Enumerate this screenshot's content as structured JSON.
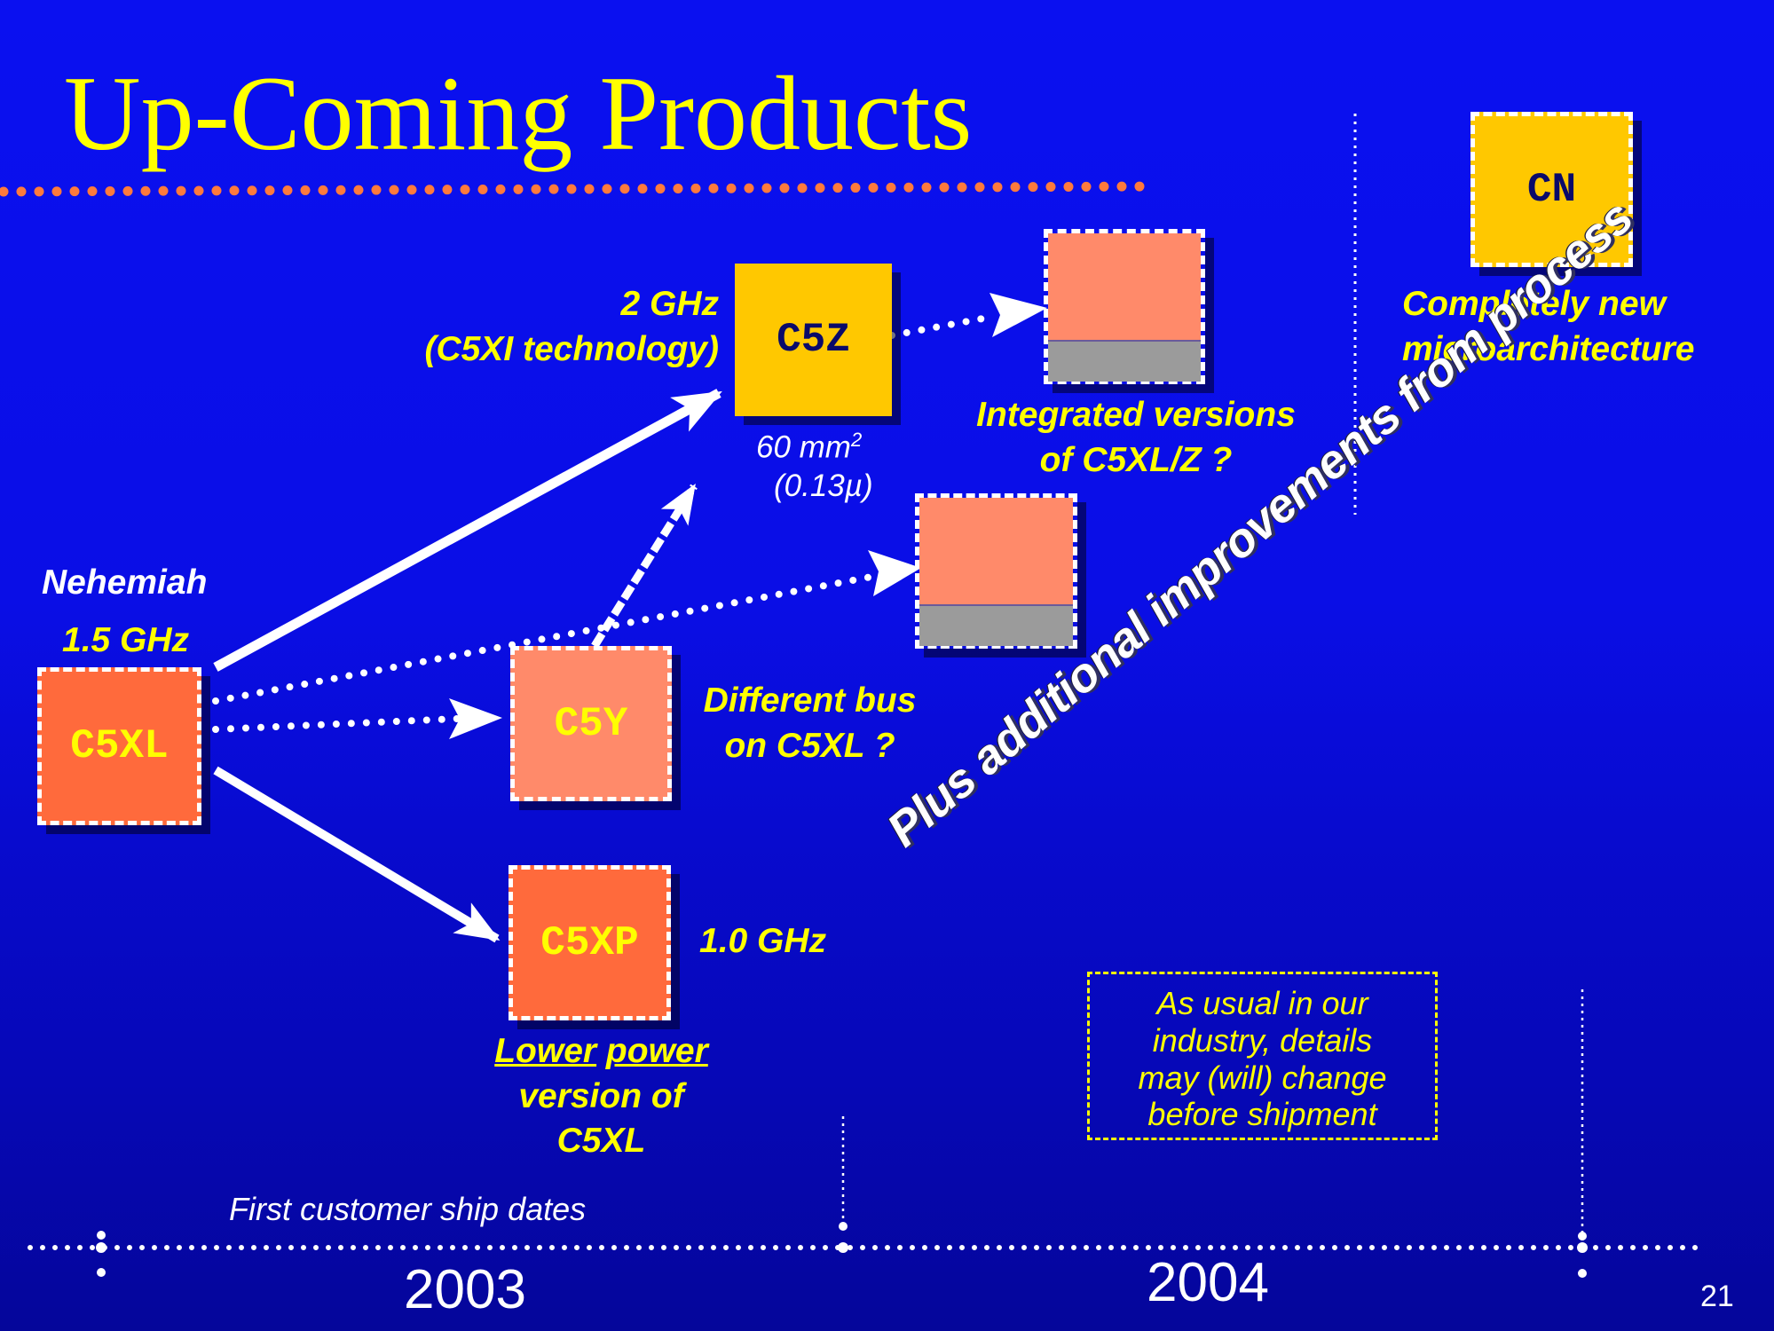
{
  "title": "Up-Coming Products",
  "chips": {
    "c5xl": {
      "label": "C5XL",
      "fill": "#ff6a3c",
      "text_color": "#ffff00"
    },
    "c5z": {
      "label": "C5Z",
      "fill": "#ffc800",
      "text_color": "#0a0a6a"
    },
    "c5y": {
      "label": "C5Y",
      "fill": "#ff8a6a",
      "text_color": "#ffff00"
    },
    "c5xp": {
      "label": "C5XP",
      "fill": "#ff6a3c",
      "text_color": "#ffff00"
    },
    "cn": {
      "label": "CN",
      "fill": "#ffc800",
      "text_color": "#0a0a6a"
    }
  },
  "labels": {
    "c5xl_name": "Nehemiah",
    "c5xl_speed": "1.5 GHz",
    "c5z_speed": "2 GHz",
    "c5z_tech": "(C5XI technology)",
    "c5z_area_value": "60 mm",
    "c5z_area_sup": "2",
    "c5z_process": "(0.13µ)",
    "integrated_line1": "Integrated versions",
    "integrated_line2": "of C5XL/Z ?",
    "c5y_line1": "Different bus",
    "c5y_line2": "on C5XL ?",
    "c5xp_speed": "1.0 GHz",
    "c5xp_word1": "Lower",
    "c5xp_word2": "power",
    "c5xp_line2": "version of",
    "c5xp_line3": "C5XL",
    "cn_line1": "Completely new",
    "cn_line2": "microarchitecture",
    "improvements": "Plus additional improvements from process"
  },
  "note": {
    "line1": "As usual in our",
    "line2": "industry, details",
    "line3": "may (will) change",
    "line4": "before shipment"
  },
  "timeline": {
    "caption": "First customer ship dates",
    "year1": "2003",
    "year2": "2004"
  },
  "page_number": "21",
  "colors": {
    "title": "#ffff00",
    "label": "#ffff00",
    "title_rule": "#ff7a3c",
    "arrow": "#ffffff",
    "integrated_top": "#ff8a6a",
    "integrated_bottom": "#9b9b9b"
  }
}
